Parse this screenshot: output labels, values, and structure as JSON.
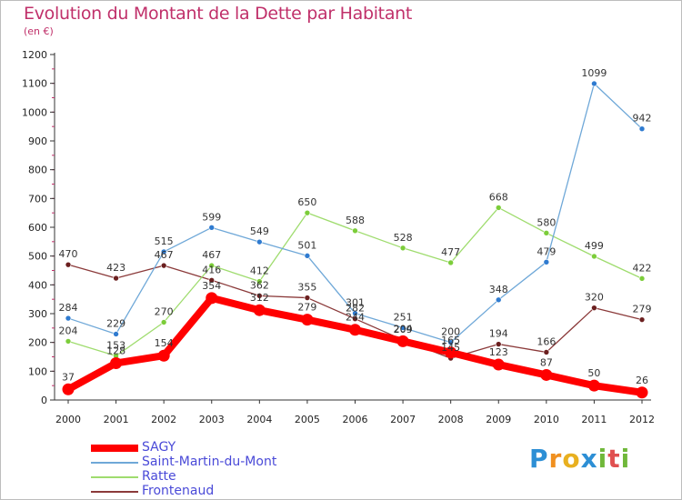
{
  "header": {
    "title": "Evolution du Montant de la Dette par Habitant",
    "subtitle": "(en €)"
  },
  "chart_data": {
    "type": "line",
    "title": "Evolution du Montant de la Dette par Habitant",
    "subtitle": "(en €)",
    "xlabel": "",
    "ylabel": "",
    "ylim": [
      0,
      1200
    ],
    "yticks": [
      0,
      100,
      200,
      300,
      400,
      500,
      600,
      700,
      800,
      900,
      1000,
      1100,
      1200
    ],
    "grid": false,
    "legend_position": "bottom-left",
    "x": [
      "2000",
      "2001",
      "2002",
      "2003",
      "2004",
      "2005",
      "2006",
      "2007",
      "2008",
      "2009",
      "2010",
      "2011",
      "2012"
    ],
    "series": [
      {
        "name": "SAGY",
        "color": "#ff0000",
        "values": [
          37,
          128,
          154,
          354,
          312,
          279,
          244,
          204,
          165,
          123,
          87,
          50,
          26
        ]
      },
      {
        "name": "Saint-Martin-du-Mont",
        "color": "#6fa8d8",
        "marker_color": "#2f7bd0",
        "values": [
          284,
          229,
          515,
          599,
          549,
          501,
          301,
          251,
          200,
          348,
          479,
          1099,
          942
        ]
      },
      {
        "name": "Ratte",
        "color": "#9fdc6e",
        "marker_color": "#7ccd3a",
        "values": [
          204,
          153,
          270,
          467,
          412,
          650,
          588,
          528,
          477,
          668,
          580,
          499,
          422
        ]
      },
      {
        "name": "Frontenaud",
        "color": "#8b3a3a",
        "marker_color": "#6b1f1f",
        "values": [
          470,
          423,
          467,
          416,
          362,
          355,
          282,
          209,
          145,
          194,
          166,
          320,
          279
        ]
      }
    ]
  },
  "logo": {
    "letters": [
      "P",
      "r",
      "o",
      "x",
      "i",
      "t",
      "i"
    ],
    "colors": [
      "#2d8fd5",
      "#f09020",
      "#e8b020",
      "#2d8fd5",
      "#70b83a",
      "#e05050",
      "#70b83a"
    ]
  }
}
